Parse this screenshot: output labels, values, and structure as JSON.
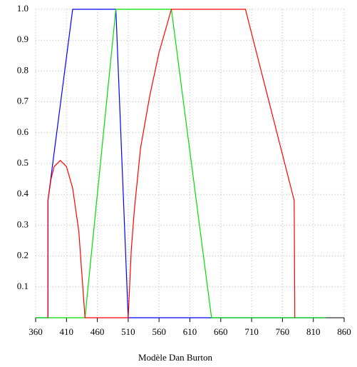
{
  "chart_data": {
    "type": "line",
    "x_label": "Modèle Dan Burton",
    "xlim": [
      360,
      860
    ],
    "xticks": [
      360,
      410,
      460,
      510,
      560,
      610,
      660,
      710,
      760,
      810,
      860
    ],
    "ylim": [
      0,
      1
    ],
    "yticks": [
      0.1,
      0.2,
      0.3,
      0.4,
      0.5,
      0.6,
      0.7,
      0.8,
      0.9,
      {
        "value": 1,
        "label": "1.0"
      }
    ],
    "grid": true,
    "series": [
      {
        "color": "#0000ff",
        "x": [
          360,
          380,
          380,
          420,
          490,
          510,
          830
        ],
        "values": [
          0,
          0,
          0.38,
          1,
          1,
          0,
          0
        ]
      },
      {
        "color": "#00dd00",
        "x": [
          360,
          440,
          490,
          580,
          645,
          830
        ],
        "values": [
          0,
          0,
          1,
          1,
          0,
          0
        ]
      },
      {
        "color": "#ff0000",
        "x": [
          380,
          380,
          385,
          390,
          400,
          410,
          420,
          430,
          440,
          510,
          515,
          520,
          530,
          545,
          560,
          580,
          700,
          779,
          780
        ],
        "values": [
          0,
          0.38,
          0.45,
          0.49,
          0.51,
          0.49,
          0.42,
          0.28,
          0,
          0,
          0.22,
          0.35,
          0.55,
          0.72,
          0.86,
          1,
          1,
          0.38,
          0
        ]
      }
    ]
  }
}
